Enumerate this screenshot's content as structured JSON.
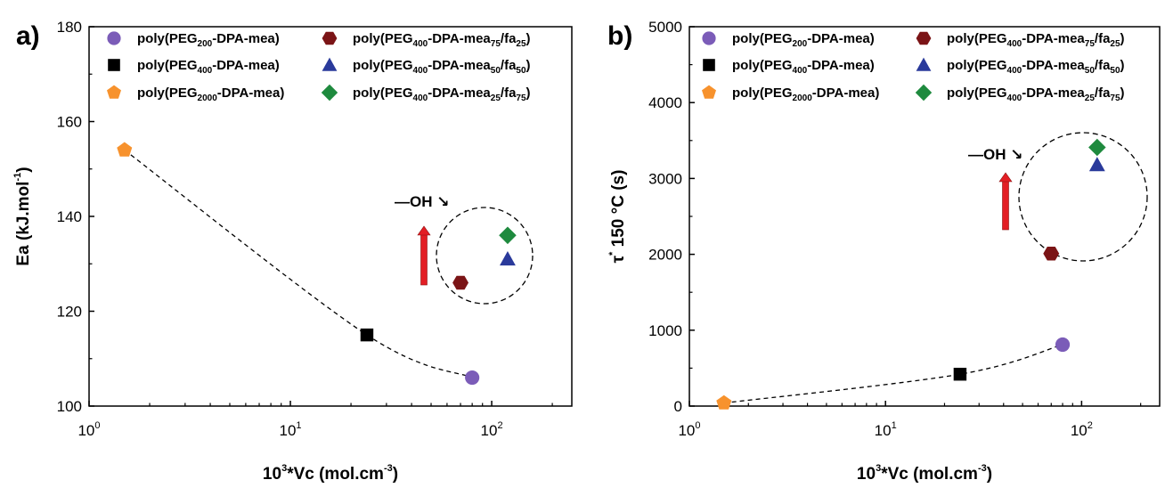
{
  "chart_data": [
    {
      "type": "scatter",
      "panel_label": "a)",
      "xlabel": {
        "base": "10",
        "exp": "3",
        "rest": "*Vc (mol.cm",
        "exp2": "-3",
        "tail": ")"
      },
      "ylabel": {
        "main": "Ea (kJ.mol",
        "exp": "-1",
        "tail": ")"
      },
      "xscale": "log",
      "xlim": [
        1,
        250
      ],
      "ylim": [
        100,
        180
      ],
      "x_ticks": [
        {
          "value": 1,
          "base": "10",
          "exp": "0"
        },
        {
          "value": 10,
          "base": "10",
          "exp": "1"
        },
        {
          "value": 100,
          "base": "10",
          "exp": "2"
        }
      ],
      "y_ticks": [
        "100",
        "120",
        "140",
        "160",
        "180"
      ],
      "series": [
        {
          "name": {
            "pre": "poly(PEG",
            "sub1": "200",
            "mid": "-DPA-mea)"
          },
          "marker": "circle",
          "color": "#7b5cb8",
          "x": 80,
          "y": 106
        },
        {
          "name": {
            "pre": "poly(PEG",
            "sub1": "400",
            "mid": "-DPA-mea)"
          },
          "marker": "square",
          "color": "#000000",
          "x": 24,
          "y": 115
        },
        {
          "name": {
            "pre": "poly(PEG",
            "sub1": "2000",
            "mid": "-DPA-mea)"
          },
          "marker": "pentagon",
          "color": "#f7922d",
          "x": 1.5,
          "y": 154
        },
        {
          "name": {
            "pre": "poly(PEG",
            "sub1": "400",
            "mid": "-DPA-mea",
            "sub2": "75",
            "mid2": "/fa",
            "sub3": "25",
            "tail": ")"
          },
          "marker": "hexagon",
          "color": "#7b1416",
          "x": 70,
          "y": 126
        },
        {
          "name": {
            "pre": "poly(PEG",
            "sub1": "400",
            "mid": "-DPA-mea",
            "sub2": "50",
            "mid2": "/fa",
            "sub3": "50",
            "tail": ")"
          },
          "marker": "triangle",
          "color": "#2a3a9b",
          "x": 120,
          "y": 131
        },
        {
          "name": {
            "pre": "poly(PEG",
            "sub1": "400",
            "mid": "-DPA-mea",
            "sub2": "25",
            "mid2": "/fa",
            "sub3": "75",
            "tail": ")"
          },
          "marker": "diamond",
          "color": "#1e8a3e",
          "x": 120,
          "y": 136
        }
      ],
      "trend_line": [
        [
          1.5,
          154
        ],
        [
          24,
          115
        ],
        [
          80,
          106
        ]
      ],
      "annotation": "—OH ↘",
      "legend_position": "top"
    },
    {
      "type": "scatter",
      "panel_label": "b)",
      "xlabel": {
        "base": "10",
        "exp": "3",
        "rest": "*Vc (mol.cm",
        "exp2": "-3",
        "tail": ")"
      },
      "ylabel": {
        "main": "τ",
        "exp": "*",
        "tail": " 150 °C (s)"
      },
      "xscale": "log",
      "xlim": [
        1,
        250
      ],
      "ylim": [
        0,
        5000
      ],
      "x_ticks": [
        {
          "value": 1,
          "base": "10",
          "exp": "0"
        },
        {
          "value": 10,
          "base": "10",
          "exp": "1"
        },
        {
          "value": 100,
          "base": "10",
          "exp": "2"
        }
      ],
      "y_ticks": [
        "0",
        "1000",
        "2000",
        "3000",
        "4000",
        "5000"
      ],
      "series": [
        {
          "name": {
            "pre": "poly(PEG",
            "sub1": "200",
            "mid": "-DPA-mea)"
          },
          "marker": "circle",
          "color": "#7b5cb8",
          "x": 80,
          "y": 810
        },
        {
          "name": {
            "pre": "poly(PEG",
            "sub1": "400",
            "mid": "-DPA-mea)"
          },
          "marker": "square",
          "color": "#000000",
          "x": 24,
          "y": 420
        },
        {
          "name": {
            "pre": "poly(PEG",
            "sub1": "2000",
            "mid": "-DPA-mea)"
          },
          "marker": "pentagon",
          "color": "#f7922d",
          "x": 1.5,
          "y": 40
        },
        {
          "name": {
            "pre": "poly(PEG",
            "sub1": "400",
            "mid": "-DPA-mea",
            "sub2": "75",
            "mid2": "/fa",
            "sub3": "25",
            "tail": ")"
          },
          "marker": "hexagon",
          "color": "#7b1416",
          "x": 70,
          "y": 2010
        },
        {
          "name": {
            "pre": "poly(PEG",
            "sub1": "400",
            "mid": "-DPA-mea",
            "sub2": "50",
            "mid2": "/fa",
            "sub3": "50",
            "tail": ")"
          },
          "marker": "triangle",
          "color": "#2a3a9b",
          "x": 120,
          "y": 3180
        },
        {
          "name": {
            "pre": "poly(PEG",
            "sub1": "400",
            "mid": "-DPA-mea",
            "sub2": "25",
            "mid2": "/fa",
            "sub3": "75",
            "tail": ")"
          },
          "marker": "diamond",
          "color": "#1e8a3e",
          "x": 120,
          "y": 3410
        }
      ],
      "trend_line": [
        [
          1.5,
          40
        ],
        [
          24,
          420
        ],
        [
          80,
          810
        ]
      ],
      "annotation": "—OH ↘",
      "legend_position": "top"
    }
  ],
  "colors": {
    "arrow": "#e31e24",
    "axis": "#000000",
    "dashed": "#000000"
  }
}
